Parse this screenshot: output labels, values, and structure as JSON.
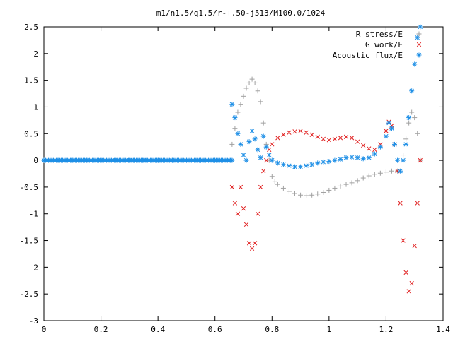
{
  "chart_data": {
    "type": "scatter",
    "title": "m1/n1.5/q1.5/r-+.50-j513/M100.0/1024",
    "xlabel": "",
    "ylabel": "",
    "xlim": [
      0,
      1.4
    ],
    "ylim": [
      -3,
      2.5
    ],
    "x_ticks": [
      "0",
      "0.2",
      "0.4",
      "0.6",
      "0.8",
      "1",
      "1.2",
      "1.4"
    ],
    "y_ticks": [
      "2.5",
      "2",
      "1.5",
      "1",
      "0.5",
      "0",
      "-0.5",
      "-1",
      "-1.5",
      "-2",
      "-2.5",
      "-3"
    ],
    "grid": false,
    "legend_position": "top-right",
    "series": [
      {
        "name": "R stress/E",
        "marker": "plus",
        "color": "#a0a0a0",
        "points": [
          [
            0.66,
            0.3
          ],
          [
            0.67,
            0.6
          ],
          [
            0.68,
            0.9
          ],
          [
            0.69,
            1.05
          ],
          [
            0.7,
            1.2
          ],
          [
            0.71,
            1.35
          ],
          [
            0.72,
            1.45
          ],
          [
            0.73,
            1.52
          ],
          [
            0.74,
            1.45
          ],
          [
            0.75,
            1.3
          ],
          [
            0.76,
            1.1
          ],
          [
            0.77,
            0.7
          ],
          [
            0.78,
            0.3
          ],
          [
            0.79,
            0.0
          ],
          [
            0.8,
            -0.3
          ],
          [
            0.81,
            -0.4
          ],
          [
            0.82,
            -0.45
          ],
          [
            0.84,
            -0.52
          ],
          [
            0.86,
            -0.58
          ],
          [
            0.88,
            -0.62
          ],
          [
            0.9,
            -0.65
          ],
          [
            0.92,
            -0.66
          ],
          [
            0.94,
            -0.65
          ],
          [
            0.96,
            -0.63
          ],
          [
            0.98,
            -0.6
          ],
          [
            1.0,
            -0.56
          ],
          [
            1.02,
            -0.52
          ],
          [
            1.04,
            -0.48
          ],
          [
            1.06,
            -0.45
          ],
          [
            1.08,
            -0.42
          ],
          [
            1.1,
            -0.38
          ],
          [
            1.12,
            -0.33
          ],
          [
            1.14,
            -0.29
          ],
          [
            1.16,
            -0.26
          ],
          [
            1.18,
            -0.24
          ],
          [
            1.2,
            -0.22
          ],
          [
            1.22,
            -0.2
          ],
          [
            1.24,
            -0.2
          ],
          [
            1.26,
            0.1
          ],
          [
            1.27,
            0.4
          ],
          [
            1.28,
            0.7
          ],
          [
            1.29,
            0.9
          ],
          [
            1.3,
            0.8
          ],
          [
            1.31,
            0.5
          ],
          [
            1.32,
            0.0
          ]
        ]
      },
      {
        "name": "G work/E",
        "marker": "cross",
        "color": "#e02020",
        "points": [
          [
            0.66,
            -0.5
          ],
          [
            0.67,
            -0.8
          ],
          [
            0.68,
            -1.0
          ],
          [
            0.69,
            -0.5
          ],
          [
            0.7,
            -0.9
          ],
          [
            0.71,
            -1.2
          ],
          [
            0.72,
            -1.55
          ],
          [
            0.73,
            -1.65
          ],
          [
            0.74,
            -1.55
          ],
          [
            0.75,
            -1.0
          ],
          [
            0.76,
            -0.5
          ],
          [
            0.77,
            -0.2
          ],
          [
            0.78,
            0.0
          ],
          [
            0.79,
            0.2
          ],
          [
            0.8,
            0.3
          ],
          [
            0.82,
            0.42
          ],
          [
            0.84,
            0.48
          ],
          [
            0.86,
            0.52
          ],
          [
            0.88,
            0.54
          ],
          [
            0.9,
            0.55
          ],
          [
            0.92,
            0.52
          ],
          [
            0.94,
            0.48
          ],
          [
            0.96,
            0.44
          ],
          [
            0.98,
            0.4
          ],
          [
            1.0,
            0.38
          ],
          [
            1.02,
            0.4
          ],
          [
            1.04,
            0.42
          ],
          [
            1.06,
            0.44
          ],
          [
            1.08,
            0.42
          ],
          [
            1.1,
            0.35
          ],
          [
            1.12,
            0.28
          ],
          [
            1.14,
            0.22
          ],
          [
            1.16,
            0.2
          ],
          [
            1.18,
            0.3
          ],
          [
            1.2,
            0.55
          ],
          [
            1.21,
            0.72
          ],
          [
            1.22,
            0.65
          ],
          [
            1.23,
            0.3
          ],
          [
            1.24,
            -0.2
          ],
          [
            1.25,
            -0.8
          ],
          [
            1.26,
            -1.5
          ],
          [
            1.27,
            -2.1
          ],
          [
            1.28,
            -2.45
          ],
          [
            1.29,
            -2.3
          ],
          [
            1.3,
            -1.6
          ],
          [
            1.31,
            -0.8
          ],
          [
            1.32,
            0.0
          ]
        ]
      },
      {
        "name": "Acoustic flux/E",
        "marker": "star",
        "color": "#1e8fe6",
        "points": [
          [
            0.0,
            0.0
          ],
          [
            0.05,
            0.0
          ],
          [
            0.1,
            0.0
          ],
          [
            0.15,
            0.0
          ],
          [
            0.2,
            0.0
          ],
          [
            0.25,
            0.0
          ],
          [
            0.3,
            0.0
          ],
          [
            0.35,
            0.0
          ],
          [
            0.4,
            0.0
          ],
          [
            0.45,
            0.0
          ],
          [
            0.5,
            0.0
          ],
          [
            0.55,
            0.0
          ],
          [
            0.6,
            0.0
          ],
          [
            0.65,
            0.0
          ],
          [
            0.66,
            1.05
          ],
          [
            0.67,
            0.8
          ],
          [
            0.68,
            0.5
          ],
          [
            0.69,
            0.3
          ],
          [
            0.7,
            0.1
          ],
          [
            0.71,
            0.0
          ],
          [
            0.72,
            0.35
          ],
          [
            0.73,
            0.55
          ],
          [
            0.74,
            0.4
          ],
          [
            0.75,
            0.2
          ],
          [
            0.76,
            0.05
          ],
          [
            0.77,
            0.45
          ],
          [
            0.78,
            0.25
          ],
          [
            0.79,
            0.1
          ],
          [
            0.8,
            0.0
          ],
          [
            0.82,
            -0.05
          ],
          [
            0.84,
            -0.08
          ],
          [
            0.86,
            -0.1
          ],
          [
            0.88,
            -0.12
          ],
          [
            0.9,
            -0.12
          ],
          [
            0.92,
            -0.1
          ],
          [
            0.94,
            -0.08
          ],
          [
            0.96,
            -0.05
          ],
          [
            0.98,
            -0.03
          ],
          [
            1.0,
            -0.02
          ],
          [
            1.02,
            0.0
          ],
          [
            1.04,
            0.02
          ],
          [
            1.06,
            0.05
          ],
          [
            1.08,
            0.06
          ],
          [
            1.1,
            0.05
          ],
          [
            1.12,
            0.03
          ],
          [
            1.14,
            0.05
          ],
          [
            1.16,
            0.12
          ],
          [
            1.18,
            0.25
          ],
          [
            1.2,
            0.45
          ],
          [
            1.21,
            0.7
          ],
          [
            1.22,
            0.6
          ],
          [
            1.23,
            0.3
          ],
          [
            1.24,
            0.0
          ],
          [
            1.25,
            -0.2
          ],
          [
            1.26,
            0.0
          ],
          [
            1.27,
            0.3
          ],
          [
            1.28,
            0.8
          ],
          [
            1.29,
            1.3
          ],
          [
            1.3,
            1.8
          ],
          [
            1.31,
            2.3
          ],
          [
            1.32,
            2.5
          ]
        ]
      }
    ]
  }
}
